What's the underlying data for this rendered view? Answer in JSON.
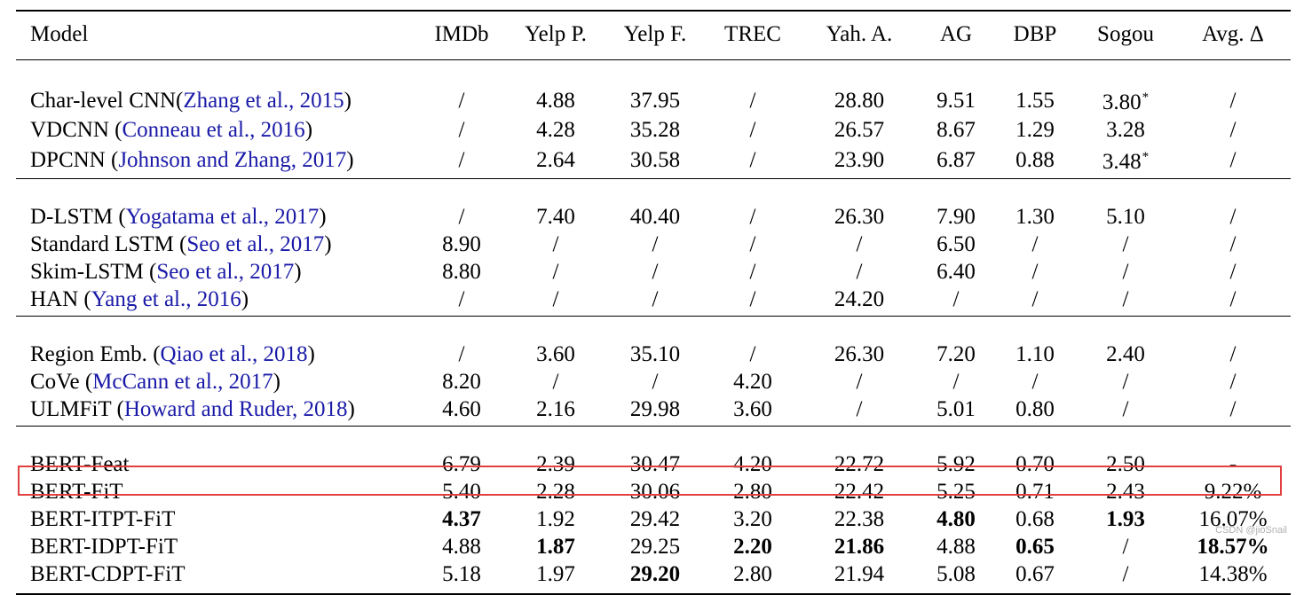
{
  "table": {
    "header": {
      "model": "Model",
      "columns": [
        "IMDb",
        "Yelp P.",
        "Yelp F.",
        "TREC",
        "Yah. A.",
        "AG",
        "DBP",
        "Sogou",
        "Avg. Δ"
      ]
    },
    "groups": [
      {
        "rows": [
          {
            "name": "Char-level CNN",
            "cite_pre": "(",
            "cite": "Zhang et al., 2015",
            "cite_post": ")",
            "values": [
              "/",
              "4.88",
              "37.95",
              "/",
              "28.80",
              "9.51",
              "1.55",
              "3.80",
              "/"
            ],
            "marks": {
              "7": "*"
            }
          },
          {
            "name": "VDCNN ",
            "cite_pre": "(",
            "cite": "Conneau et al., 2016",
            "cite_post": ")",
            "values": [
              "/",
              "4.28",
              "35.28",
              "/",
              "26.57",
              "8.67",
              "1.29",
              "3.28",
              "/"
            ]
          },
          {
            "name": "DPCNN ",
            "cite_pre": "(",
            "cite": "Johnson and Zhang, 2017",
            "cite_post": ")",
            "values": [
              "/",
              "2.64",
              "30.58",
              "/",
              "23.90",
              "6.87",
              "0.88",
              "3.48",
              "/"
            ],
            "marks": {
              "7": "*"
            }
          }
        ]
      },
      {
        "rows": [
          {
            "name": "D-LSTM ",
            "cite_pre": "(",
            "cite": "Yogatama et al., 2017",
            "cite_post": ")",
            "values": [
              "/",
              "7.40",
              "40.40",
              "/",
              "26.30",
              "7.90",
              "1.30",
              "5.10",
              "/"
            ]
          },
          {
            "name": "Standard LSTM ",
            "cite_pre": "(",
            "cite": "Seo et al., 2017",
            "cite_post": ")",
            "values": [
              "8.90",
              "/",
              "/",
              "/",
              "/",
              "6.50",
              "/",
              "/",
              "/"
            ]
          },
          {
            "name": "Skim-LSTM ",
            "cite_pre": "(",
            "cite": "Seo et al., 2017",
            "cite_post": ")",
            "values": [
              "8.80",
              "/",
              "/",
              "/",
              "/",
              "6.40",
              "/",
              "/",
              "/"
            ]
          },
          {
            "name": "HAN ",
            "cite_pre": "(",
            "cite": "Yang et al., 2016",
            "cite_post": ")",
            "values": [
              "/",
              "/",
              "/",
              "/",
              "24.20",
              "/",
              "/",
              "/",
              "/"
            ]
          }
        ]
      },
      {
        "rows": [
          {
            "name": "Region Emb. ",
            "cite_pre": "(",
            "cite": "Qiao et al., 2018",
            "cite_post": ")",
            "values": [
              "/",
              "3.60",
              "35.10",
              "/",
              "26.30",
              "7.20",
              "1.10",
              "2.40",
              "/"
            ]
          },
          {
            "name": "CoVe ",
            "cite_pre": "(",
            "cite": "McCann et al., 2017",
            "cite_post": ")",
            "values": [
              "8.20",
              "/",
              "/",
              "4.20",
              "/",
              "/",
              "/",
              "/",
              "/"
            ]
          },
          {
            "name": "ULMFiT ",
            "cite_pre": "(",
            "cite": "Howard and Ruder, 2018",
            "cite_post": ")",
            "values": [
              "4.60",
              "2.16",
              "29.98",
              "3.60",
              "/",
              "5.01",
              "0.80",
              "/",
              "/"
            ]
          }
        ]
      },
      {
        "rows": [
          {
            "name": "BERT-Feat",
            "values": [
              "6.79",
              "2.39",
              "30.47",
              "4.20",
              "22.72",
              "5.92",
              "0.70",
              "2.50",
              "-"
            ]
          },
          {
            "name": "BERT-FiT",
            "values": [
              "5.40",
              "2.28",
              "30.06",
              "2.80",
              "22.42",
              "5.25",
              "0.71",
              "2.43",
              "9.22%"
            ]
          },
          {
            "name": "BERT-ITPT-FiT",
            "values": [
              "4.37",
              "1.92",
              "29.42",
              "3.20",
              "22.38",
              "4.80",
              "0.68",
              "1.93",
              "16.07%"
            ],
            "bold": [
              0,
              5,
              7
            ]
          },
          {
            "name": "BERT-IDPT-FiT",
            "values": [
              "4.88",
              "1.87",
              "29.25",
              "2.20",
              "21.86",
              "4.88",
              "0.65",
              "/",
              "18.57%"
            ],
            "bold": [
              1,
              3,
              4,
              6,
              8
            ],
            "highlighted": true
          },
          {
            "name": "BERT-CDPT-FiT",
            "values": [
              "5.18",
              "1.97",
              "29.20",
              "2.80",
              "21.94",
              "5.08",
              "0.67",
              "/",
              "14.38%"
            ],
            "bold": [
              2
            ]
          }
        ]
      }
    ]
  },
  "highlight_color": "#e04040",
  "citation_color": "#1a1aa8",
  "watermark": "CSDN @jioSnail"
}
